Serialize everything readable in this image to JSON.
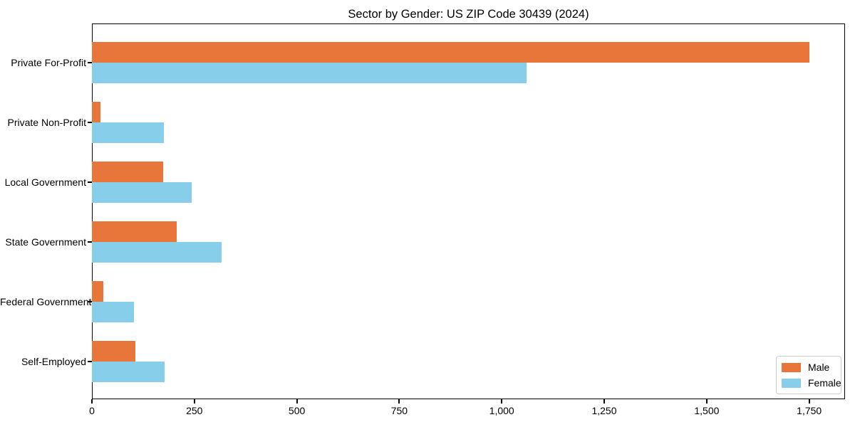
{
  "title": "Sector by Gender: US ZIP Code 30439 (2024)",
  "legend": {
    "position": "lower right",
    "items": [
      {
        "label": "Male",
        "color": "#E8763B"
      },
      {
        "label": "Female",
        "color": "#87CEEB"
      }
    ]
  },
  "chart_data": {
    "type": "bar",
    "orientation": "horizontal",
    "title": "Sector by Gender: US ZIP Code 30439 (2024)",
    "categories": [
      "Private For-Profit",
      "Private Non-Profit",
      "Local Government",
      "State Government",
      "Federal Government",
      "Self-Employed"
    ],
    "series": [
      {
        "name": "Male",
        "color": "#E8763B",
        "values": [
          1750,
          20,
          173,
          207,
          28,
          106
        ]
      },
      {
        "name": "Female",
        "color": "#87CEEB",
        "values": [
          1060,
          175,
          243,
          317,
          103,
          177
        ]
      }
    ],
    "xlabel": "",
    "ylabel": "",
    "xlim": [
      0,
      1837.5
    ],
    "x_ticks": [
      0,
      250,
      500,
      750,
      1000,
      1250,
      1500,
      1750
    ],
    "x_tick_labels": [
      "0",
      "250",
      "500",
      "750",
      "1,000",
      "1,250",
      "1,500",
      "1,750"
    ],
    "grid": false,
    "legend_position": "lower right"
  }
}
